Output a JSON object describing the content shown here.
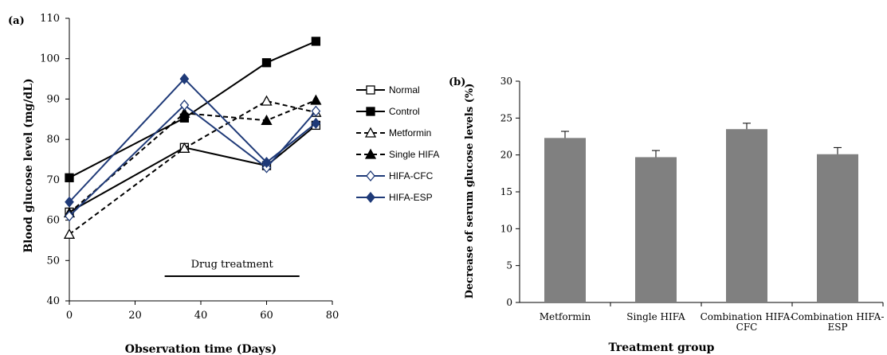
{
  "chart_data": [
    {
      "type": "line",
      "panel_label": "(a)",
      "title": "",
      "xlabel": "Observation time (Days)",
      "ylabel": "Blood glucose level (mg/dL)",
      "xlim": [
        0,
        80
      ],
      "ylim": [
        40,
        110
      ],
      "xticks": [
        0,
        20,
        40,
        60,
        80
      ],
      "yticks": [
        40,
        50,
        60,
        70,
        80,
        90,
        100,
        110
      ],
      "x": [
        0,
        35,
        60,
        75
      ],
      "grid": false,
      "legend_position": "right",
      "annotation": {
        "text": "Drug treatment",
        "x_start": 29,
        "x_end": 70
      },
      "series": [
        {
          "name": "Normal",
          "values": [
            62,
            78,
            73.5,
            83.5
          ],
          "color": "#000000",
          "dash": "solid",
          "marker": "square-open"
        },
        {
          "name": "Control",
          "values": [
            70.5,
            85.3,
            99,
            104.3
          ],
          "color": "#000000",
          "dash": "solid",
          "marker": "square-filled"
        },
        {
          "name": "Metformin",
          "values": [
            56.5,
            77.8,
            89.5,
            86.7
          ],
          "color": "#000000",
          "dash": "dashed",
          "marker": "triangle-open"
        },
        {
          "name": "Single HIFA",
          "values": [
            61.8,
            86.5,
            84.7,
            89.7
          ],
          "color": "#000000",
          "dash": "dashed",
          "marker": "triangle-filled"
        },
        {
          "name": "HIFA-CFC",
          "values": [
            61,
            88.5,
            73,
            87
          ],
          "color": "#1f3a78",
          "dash": "solid",
          "marker": "diamond-open"
        },
        {
          "name": "HIFA-ESP",
          "values": [
            64.5,
            95,
            74.3,
            84
          ],
          "color": "#1f3a78",
          "dash": "solid",
          "marker": "diamond-filled"
        }
      ]
    },
    {
      "type": "bar",
      "panel_label": "(b)",
      "title": "",
      "xlabel": "Treatment group",
      "ylabel": "Decrease of serum glucose levels (%)",
      "ylim": [
        0,
        30
      ],
      "yticks": [
        0,
        5,
        10,
        15,
        20,
        25,
        30
      ],
      "grid": false,
      "categories": [
        [
          "Metformin"
        ],
        [
          "Single HIFA"
        ],
        [
          "Combination HIFA-",
          "CFC"
        ],
        [
          "Combination HIFA-",
          "ESP"
        ]
      ],
      "values": [
        22.3,
        19.7,
        23.5,
        20.1
      ],
      "errors": [
        0.9,
        0.9,
        0.8,
        0.9
      ],
      "bar_color": "#808080"
    }
  ]
}
